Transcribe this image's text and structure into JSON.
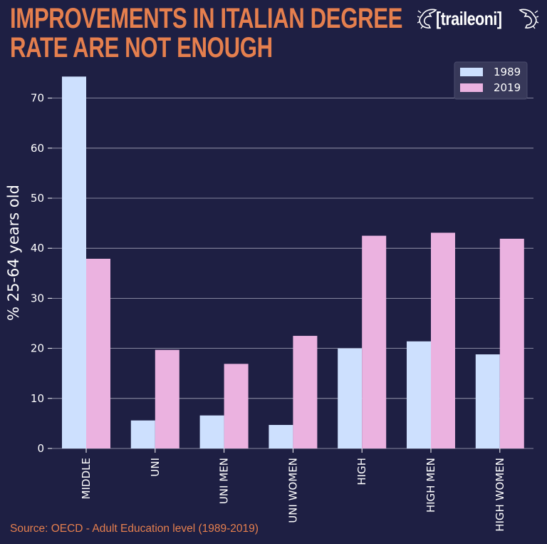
{
  "header": {
    "title_line1": "IMPROVEMENTS IN ITALIAN DEGREE",
    "title_line2": "RATE ARE NOT ENOUGH",
    "logo_text": "[traileoni]"
  },
  "source": "Source: OECD - Adult Education level (1989-2019)",
  "colors": {
    "background": "#1e1f43",
    "accent": "#e57f4e",
    "series_1989": "#cde0fe",
    "series_2019": "#ebb2e0",
    "grid": "#a7a8bc"
  },
  "chart_data": {
    "type": "bar",
    "title": "IMPROVEMENTS IN ITALIAN DEGREE RATE ARE NOT ENOUGH",
    "xlabel": "",
    "ylabel": "% 25-64 years old",
    "categories": [
      "MIDDLE",
      "UNI",
      "UNI MEN",
      "UNI WOMEN",
      "HIGH",
      "HIGH MEN",
      "HIGH WOMEN"
    ],
    "series": [
      {
        "name": "1989",
        "values": [
          74.3,
          5.6,
          6.6,
          4.7,
          20.0,
          21.4,
          18.8
        ]
      },
      {
        "name": "2019",
        "values": [
          37.9,
          19.7,
          16.9,
          22.5,
          42.5,
          43.1,
          41.9
        ]
      }
    ],
    "ylim": [
      0,
      74.5
    ],
    "yticks": [
      0,
      10,
      20,
      30,
      40,
      50,
      60,
      70
    ],
    "grid": true,
    "legend_position": "top-right"
  }
}
